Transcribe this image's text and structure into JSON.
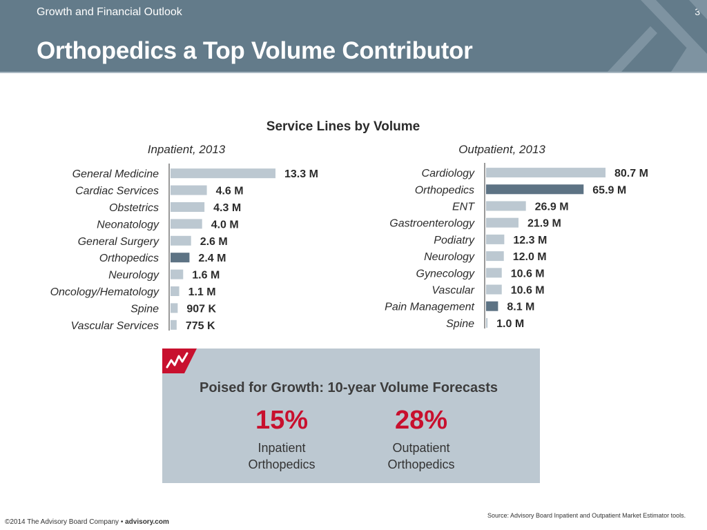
{
  "header": {
    "section_label": "Growth and Financial Outlook",
    "title": "Orthopedics a Top Volume Contributor",
    "page_number": "3"
  },
  "chart_heading": "Service Lines by Volume",
  "chart_data": [
    {
      "type": "bar",
      "orientation": "horizontal",
      "title": "Inpatient, 2013",
      "categories": [
        "General Medicine",
        "Cardiac Services",
        "Obstetrics",
        "Neonatology",
        "General Surgery",
        "Orthopedics",
        "Neurology",
        "Oncology/Hematology",
        "Spine",
        "Vascular Services"
      ],
      "values": [
        13.3,
        4.6,
        4.3,
        4.0,
        2.6,
        2.4,
        1.6,
        1.1,
        0.907,
        0.775
      ],
      "value_labels": [
        "13.3 M",
        "4.6 M",
        "4.3 M",
        "4.0 M",
        "2.6 M",
        "2.4 M",
        "1.6 M",
        "1.1 M",
        "907 K",
        "775 K"
      ],
      "unit": "millions",
      "highlight": "Orthopedics",
      "xlim": [
        0,
        13.3
      ],
      "colors": {
        "default": "#bcc8d1",
        "highlight": "#5d7384"
      }
    },
    {
      "type": "bar",
      "orientation": "horizontal",
      "title": "Outpatient, 2013",
      "categories": [
        "Cardiology",
        "Orthopedics",
        "ENT",
        "Gastroenterology",
        "Podiatry",
        "Neurology",
        "Gynecology",
        "Vascular",
        "Pain Management",
        "Spine"
      ],
      "values": [
        80.7,
        65.9,
        26.9,
        21.9,
        12.3,
        12.0,
        10.6,
        10.6,
        8.1,
        1.0
      ],
      "value_labels": [
        "80.7 M",
        "65.9 M",
        "26.9 M",
        "21.9 M",
        "12.3 M",
        "12.0 M",
        "10.6 M",
        "10.6 M",
        "8.1 M",
        "1.0 M"
      ],
      "unit": "millions",
      "highlight": [
        "Orthopedics",
        "Pain Management"
      ],
      "xlim": [
        0,
        80.7
      ],
      "colors": {
        "default": "#bcc8d1",
        "highlight": "#5d7384"
      }
    }
  ],
  "forecast": {
    "heading": "Poised for Growth: 10-year Volume Forecasts",
    "stats": [
      {
        "value": "15%",
        "label_line1": "Inpatient",
        "label_line2": "Orthopedics"
      },
      {
        "value": "28%",
        "label_line1": "Outpatient",
        "label_line2": "Orthopedics"
      }
    ],
    "icon": "trend-chart-icon",
    "accent_color": "#c8102e"
  },
  "footer": {
    "copyright": "©2014 The Advisory Board Company • ",
    "website": "advisory.com",
    "source": "Source: Advisory Board Inpatient and Outpatient Market Estimator tools."
  },
  "colors": {
    "header_bg": "#637b8a",
    "box_bg": "#bcc8d1",
    "accent": "#c8102e"
  }
}
